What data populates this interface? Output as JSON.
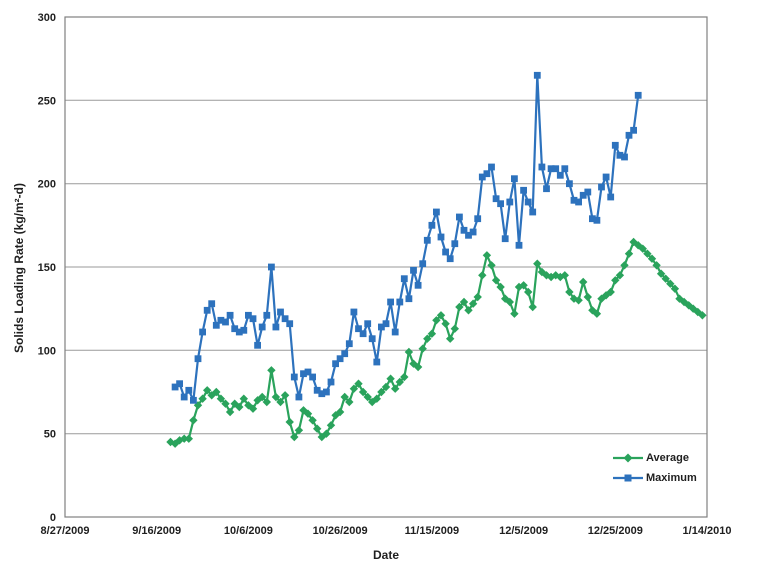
{
  "chart_data": {
    "type": "line",
    "title": "",
    "xlabel": "Date",
    "ylabel": "Solids Loading Rate (kg/m²-d)",
    "ylim": [
      0,
      300
    ],
    "y_ticks": [
      0,
      50,
      100,
      150,
      200,
      250,
      300
    ],
    "x_ticks": [
      "8/27/2009",
      "9/16/2009",
      "10/6/2009",
      "10/26/2009",
      "11/15/2009",
      "12/5/2009",
      "12/25/2009",
      "1/14/2010"
    ],
    "x_range": [
      "8/27/2009",
      "1/14/2010"
    ],
    "grid": "horizontal",
    "legend_position": "inside-bottom-right",
    "colors": {
      "grid": "#9a9a9a",
      "frame": "#808080",
      "text": "#1f1f1f"
    },
    "series": [
      {
        "name": "Average",
        "color": "#2aa35c",
        "marker": "diamond",
        "points": [
          [
            "9/19/2009",
            45
          ],
          [
            "9/20/2009",
            44
          ],
          [
            "9/21/2009",
            46
          ],
          [
            "9/22/2009",
            47
          ],
          [
            "9/23/2009",
            47
          ],
          [
            "9/24/2009",
            58
          ],
          [
            "9/25/2009",
            67
          ],
          [
            "9/26/2009",
            71
          ],
          [
            "9/27/2009",
            76
          ],
          [
            "9/28/2009",
            73
          ],
          [
            "9/29/2009",
            75
          ],
          [
            "9/30/2009",
            71
          ],
          [
            "10/1/2009",
            68
          ],
          [
            "10/2/2009",
            63
          ],
          [
            "10/3/2009",
            68
          ],
          [
            "10/4/2009",
            66
          ],
          [
            "10/5/2009",
            71
          ],
          [
            "10/6/2009",
            67
          ],
          [
            "10/7/2009",
            65
          ],
          [
            "10/8/2009",
            70
          ],
          [
            "10/9/2009",
            72
          ],
          [
            "10/10/2009",
            69
          ],
          [
            "10/11/2009",
            88
          ],
          [
            "10/12/2009",
            72
          ],
          [
            "10/13/2009",
            69
          ],
          [
            "10/14/2009",
            73
          ],
          [
            "10/15/2009",
            57
          ],
          [
            "10/16/2009",
            48
          ],
          [
            "10/17/2009",
            52
          ],
          [
            "10/18/2009",
            64
          ],
          [
            "10/19/2009",
            62
          ],
          [
            "10/20/2009",
            58
          ],
          [
            "10/21/2009",
            53
          ],
          [
            "10/22/2009",
            48
          ],
          [
            "10/23/2009",
            50
          ],
          [
            "10/24/2009",
            55
          ],
          [
            "10/25/2009",
            61
          ],
          [
            "10/26/2009",
            63
          ],
          [
            "10/27/2009",
            72
          ],
          [
            "10/28/2009",
            69
          ],
          [
            "10/29/2009",
            77
          ],
          [
            "10/30/2009",
            80
          ],
          [
            "10/31/2009",
            75
          ],
          [
            "11/1/2009",
            72
          ],
          [
            "11/2/2009",
            69
          ],
          [
            "11/3/2009",
            71
          ],
          [
            "11/4/2009",
            75
          ],
          [
            "11/5/2009",
            78
          ],
          [
            "11/6/2009",
            83
          ],
          [
            "11/7/2009",
            77
          ],
          [
            "11/8/2009",
            81
          ],
          [
            "11/9/2009",
            84
          ],
          [
            "11/10/2009",
            99
          ],
          [
            "11/11/2009",
            92
          ],
          [
            "11/12/2009",
            90
          ],
          [
            "11/13/2009",
            101
          ],
          [
            "11/14/2009",
            107
          ],
          [
            "11/15/2009",
            110
          ],
          [
            "11/16/2009",
            118
          ],
          [
            "11/17/2009",
            121
          ],
          [
            "11/18/2009",
            116
          ],
          [
            "11/19/2009",
            107
          ],
          [
            "11/20/2009",
            113
          ],
          [
            "11/21/2009",
            126
          ],
          [
            "11/22/2009",
            129
          ],
          [
            "11/23/2009",
            124
          ],
          [
            "11/24/2009",
            128
          ],
          [
            "11/25/2009",
            132
          ],
          [
            "11/26/2009",
            145
          ],
          [
            "11/27/2009",
            157
          ],
          [
            "11/28/2009",
            151
          ],
          [
            "11/29/2009",
            142
          ],
          [
            "11/30/2009",
            138
          ],
          [
            "12/1/2009",
            131
          ],
          [
            "12/2/2009",
            129
          ],
          [
            "12/3/2009",
            122
          ],
          [
            "12/4/2009",
            138
          ],
          [
            "12/5/2009",
            139
          ],
          [
            "12/6/2009",
            135
          ],
          [
            "12/7/2009",
            126
          ],
          [
            "12/8/2009",
            152
          ],
          [
            "12/9/2009",
            147
          ],
          [
            "12/10/2009",
            145
          ],
          [
            "12/11/2009",
            144
          ],
          [
            "12/12/2009",
            145
          ],
          [
            "12/13/2009",
            144
          ],
          [
            "12/14/2009",
            145
          ],
          [
            "12/15/2009",
            135
          ],
          [
            "12/16/2009",
            131
          ],
          [
            "12/17/2009",
            130
          ],
          [
            "12/18/2009",
            141
          ],
          [
            "12/19/2009",
            132
          ],
          [
            "12/20/2009",
            124
          ],
          [
            "12/21/2009",
            122
          ],
          [
            "12/22/2009",
            131
          ],
          [
            "12/23/2009",
            133
          ],
          [
            "12/24/2009",
            135
          ],
          [
            "12/25/2009",
            142
          ],
          [
            "12/26/2009",
            145
          ],
          [
            "12/27/2009",
            151
          ],
          [
            "12/28/2009",
            158
          ],
          [
            "12/29/2009",
            165
          ],
          [
            "12/30/2009",
            163
          ],
          [
            "12/31/2009",
            161
          ],
          [
            "1/1/2010",
            158
          ],
          [
            "1/2/2010",
            155
          ],
          [
            "1/3/2010",
            151
          ],
          [
            "1/4/2010",
            146
          ],
          [
            "1/5/2010",
            143
          ],
          [
            "1/6/2010",
            140
          ],
          [
            "1/7/2010",
            137
          ],
          [
            "1/8/2010",
            131
          ],
          [
            "1/9/2010",
            129
          ],
          [
            "1/10/2010",
            127
          ],
          [
            "1/11/2010",
            125
          ],
          [
            "1/12/2010",
            123
          ],
          [
            "1/13/2010",
            121
          ]
        ]
      },
      {
        "name": "Maximum",
        "color": "#2d72bd",
        "marker": "square",
        "points": [
          [
            "9/20/2009",
            78
          ],
          [
            "9/21/2009",
            80
          ],
          [
            "9/22/2009",
            72
          ],
          [
            "9/23/2009",
            76
          ],
          [
            "9/24/2009",
            70
          ],
          [
            "9/25/2009",
            95
          ],
          [
            "9/26/2009",
            111
          ],
          [
            "9/27/2009",
            124
          ],
          [
            "9/28/2009",
            128
          ],
          [
            "9/29/2009",
            115
          ],
          [
            "9/30/2009",
            118
          ],
          [
            "10/1/2009",
            117
          ],
          [
            "10/2/2009",
            121
          ],
          [
            "10/3/2009",
            113
          ],
          [
            "10/4/2009",
            111
          ],
          [
            "10/5/2009",
            112
          ],
          [
            "10/6/2009",
            121
          ],
          [
            "10/7/2009",
            119
          ],
          [
            "10/8/2009",
            103
          ],
          [
            "10/9/2009",
            114
          ],
          [
            "10/10/2009",
            121
          ],
          [
            "10/11/2009",
            150
          ],
          [
            "10/12/2009",
            114
          ],
          [
            "10/13/2009",
            123
          ],
          [
            "10/14/2009",
            119
          ],
          [
            "10/15/2009",
            116
          ],
          [
            "10/16/2009",
            84
          ],
          [
            "10/17/2009",
            72
          ],
          [
            "10/18/2009",
            86
          ],
          [
            "10/19/2009",
            87
          ],
          [
            "10/20/2009",
            84
          ],
          [
            "10/21/2009",
            76
          ],
          [
            "10/22/2009",
            74
          ],
          [
            "10/23/2009",
            75
          ],
          [
            "10/24/2009",
            81
          ],
          [
            "10/25/2009",
            92
          ],
          [
            "10/26/2009",
            95
          ],
          [
            "10/27/2009",
            98
          ],
          [
            "10/28/2009",
            104
          ],
          [
            "10/29/2009",
            123
          ],
          [
            "10/30/2009",
            113
          ],
          [
            "10/31/2009",
            110
          ],
          [
            "11/1/2009",
            116
          ],
          [
            "11/2/2009",
            107
          ],
          [
            "11/3/2009",
            93
          ],
          [
            "11/4/2009",
            114
          ],
          [
            "11/5/2009",
            116
          ],
          [
            "11/6/2009",
            129
          ],
          [
            "11/7/2009",
            111
          ],
          [
            "11/8/2009",
            129
          ],
          [
            "11/9/2009",
            143
          ],
          [
            "11/10/2009",
            131
          ],
          [
            "11/11/2009",
            148
          ],
          [
            "11/12/2009",
            139
          ],
          [
            "11/13/2009",
            152
          ],
          [
            "11/14/2009",
            166
          ],
          [
            "11/15/2009",
            175
          ],
          [
            "11/16/2009",
            183
          ],
          [
            "11/17/2009",
            168
          ],
          [
            "11/18/2009",
            159
          ],
          [
            "11/19/2009",
            155
          ],
          [
            "11/20/2009",
            164
          ],
          [
            "11/21/2009",
            180
          ],
          [
            "11/22/2009",
            172
          ],
          [
            "11/23/2009",
            169
          ],
          [
            "11/24/2009",
            171
          ],
          [
            "11/25/2009",
            179
          ],
          [
            "11/26/2009",
            204
          ],
          [
            "11/27/2009",
            206
          ],
          [
            "11/28/2009",
            210
          ],
          [
            "11/29/2009",
            191
          ],
          [
            "11/30/2009",
            188
          ],
          [
            "12/1/2009",
            167
          ],
          [
            "12/2/2009",
            189
          ],
          [
            "12/3/2009",
            203
          ],
          [
            "12/4/2009",
            163
          ],
          [
            "12/5/2009",
            196
          ],
          [
            "12/6/2009",
            189
          ],
          [
            "12/7/2009",
            183
          ],
          [
            "12/8/2009",
            265
          ],
          [
            "12/9/2009",
            210
          ],
          [
            "12/10/2009",
            197
          ],
          [
            "12/11/2009",
            209
          ],
          [
            "12/12/2009",
            209
          ],
          [
            "12/13/2009",
            205
          ],
          [
            "12/14/2009",
            209
          ],
          [
            "12/15/2009",
            200
          ],
          [
            "12/16/2009",
            190
          ],
          [
            "12/17/2009",
            189
          ],
          [
            "12/18/2009",
            193
          ],
          [
            "12/19/2009",
            195
          ],
          [
            "12/20/2009",
            179
          ],
          [
            "12/21/2009",
            178
          ],
          [
            "12/22/2009",
            198
          ],
          [
            "12/23/2009",
            204
          ],
          [
            "12/24/2009",
            192
          ],
          [
            "12/25/2009",
            223
          ],
          [
            "12/26/2009",
            217
          ],
          [
            "12/27/2009",
            216
          ],
          [
            "12/28/2009",
            229
          ],
          [
            "12/29/2009",
            232
          ],
          [
            "12/30/2009",
            253
          ]
        ]
      }
    ]
  }
}
